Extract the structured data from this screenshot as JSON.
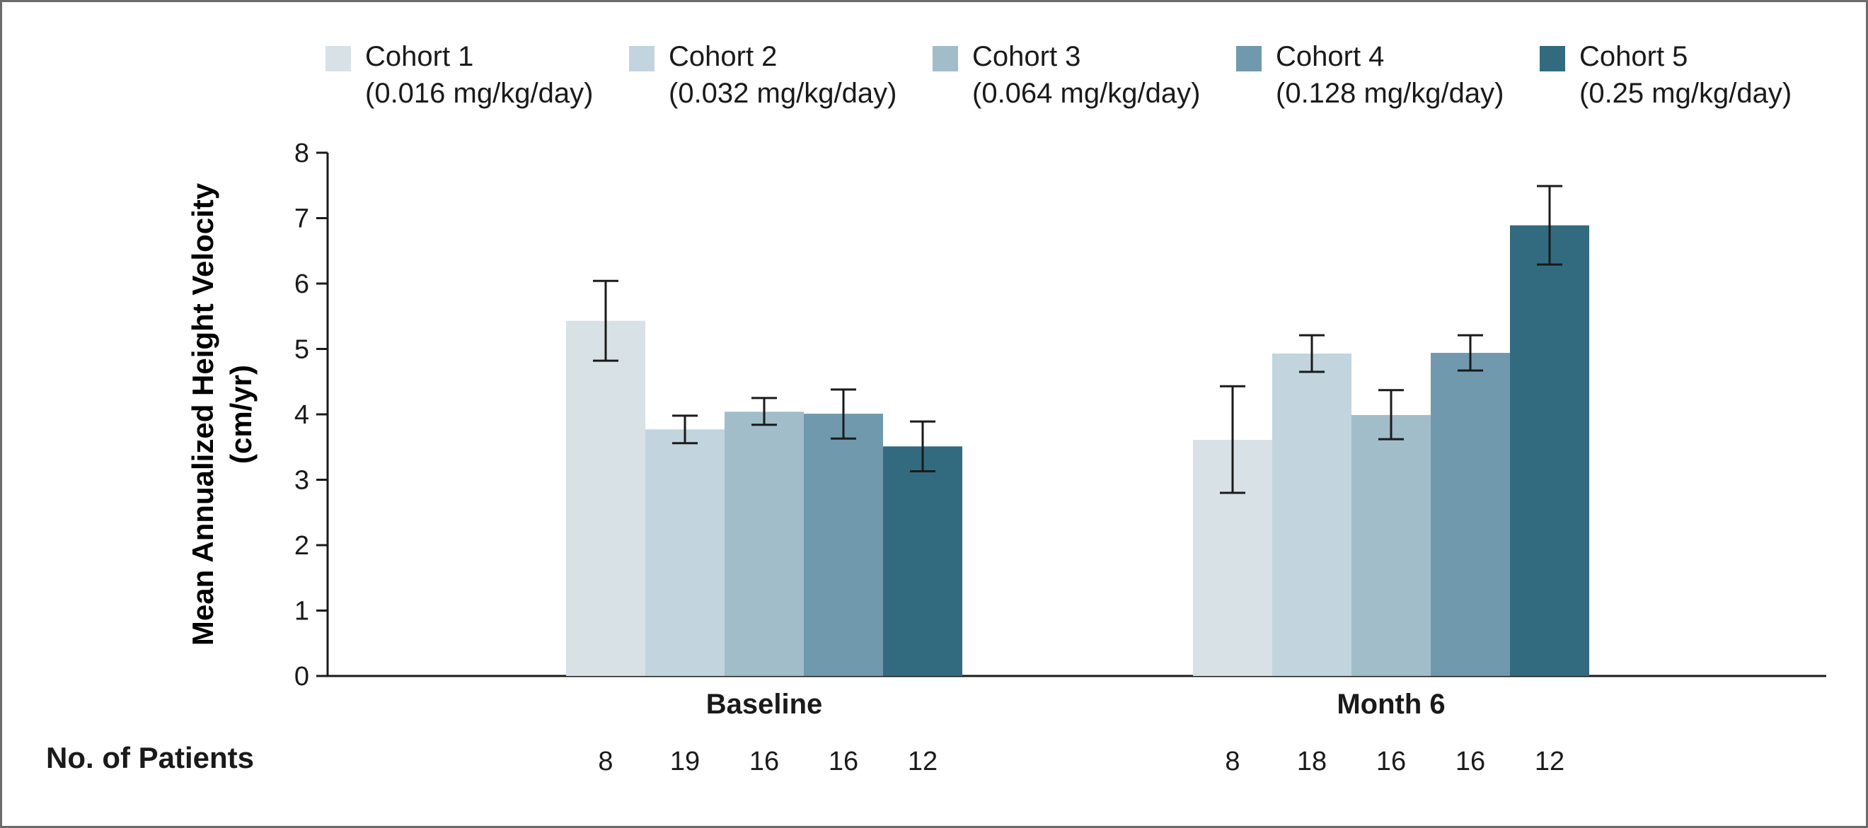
{
  "chart_data": {
    "type": "bar",
    "ylabel_line1": "Mean Annualized Height Velocity",
    "ylabel_line2": "(cm/yr)",
    "ylim": [
      0,
      8
    ],
    "yticks": [
      "0",
      "1",
      "2",
      "3",
      "4",
      "5",
      "6",
      "7",
      "8"
    ],
    "categories": [
      "Baseline",
      "Month 6"
    ],
    "legend_placement": "top",
    "series": [
      {
        "name": "Cohort 1",
        "dose": "(0.016 mg/kg/day)",
        "color": "#d7e1e6",
        "values": [
          5.43,
          3.61
        ],
        "error_low": [
          4.82,
          2.8
        ],
        "error_high": [
          6.04,
          4.43
        ],
        "n": [
          "8",
          "8"
        ]
      },
      {
        "name": "Cohort 2",
        "dose": "(0.032 mg/kg/day)",
        "color": "#c2d4dd",
        "values": [
          3.77,
          4.93
        ],
        "error_low": [
          3.56,
          4.65
        ],
        "error_high": [
          3.98,
          5.21
        ],
        "n": [
          "19",
          "18"
        ]
      },
      {
        "name": "Cohort 3",
        "dose": "(0.064 mg/kg/day)",
        "color": "#a1bdca",
        "values": [
          4.04,
          3.99
        ],
        "error_low": [
          3.84,
          3.62
        ],
        "error_high": [
          4.25,
          4.37
        ],
        "n": [
          "16",
          "16"
        ]
      },
      {
        "name": "Cohort 4",
        "dose": "(0.128 mg/kg/day)",
        "color": "#7099ad",
        "values": [
          4.01,
          4.94
        ],
        "error_low": [
          3.63,
          4.67
        ],
        "error_high": [
          4.38,
          5.21
        ],
        "n": [
          "16",
          "16"
        ]
      },
      {
        "name": "Cohort 5",
        "dose": "(0.25 mg/kg/day)",
        "color": "#326b7f",
        "values": [
          3.51,
          6.89
        ],
        "error_low": [
          3.13,
          6.29
        ],
        "error_high": [
          3.89,
          7.49
        ],
        "n": [
          "12",
          "12"
        ]
      }
    ]
  },
  "patients_label": "No. of Patients"
}
